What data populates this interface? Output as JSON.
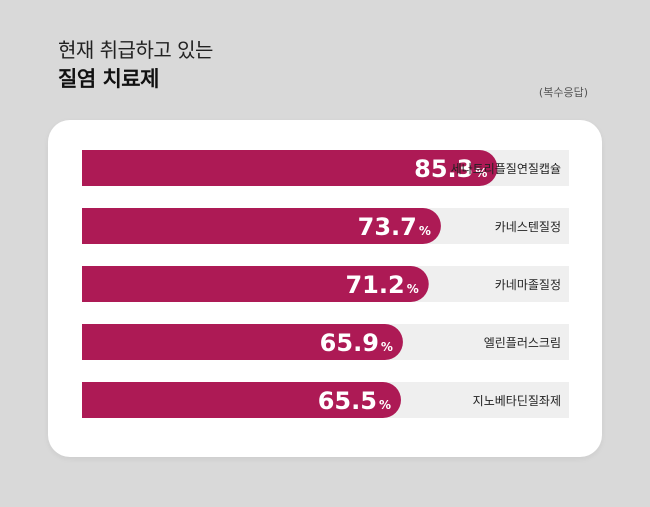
{
  "header": {
    "title_line1": "현재 취급하고 있는",
    "title_line2": "질염 치료제",
    "note": "(복수응답)"
  },
  "colors": {
    "bar": "#ad1a55",
    "track": "#efefef",
    "background": "#d9d9d9",
    "card": "#ffffff"
  },
  "chart_data": {
    "type": "bar",
    "orientation": "horizontal",
    "categories": [
      "세나트리플질연질캡슐",
      "카네스텐질정",
      "카네마졸질정",
      "엘린플러스크림",
      "지노베타딘질좌제"
    ],
    "values": [
      85.3,
      73.7,
      71.2,
      65.9,
      65.5
    ],
    "value_suffix": "%",
    "xlim": [
      0,
      100
    ],
    "grid": false,
    "legend": "none"
  }
}
